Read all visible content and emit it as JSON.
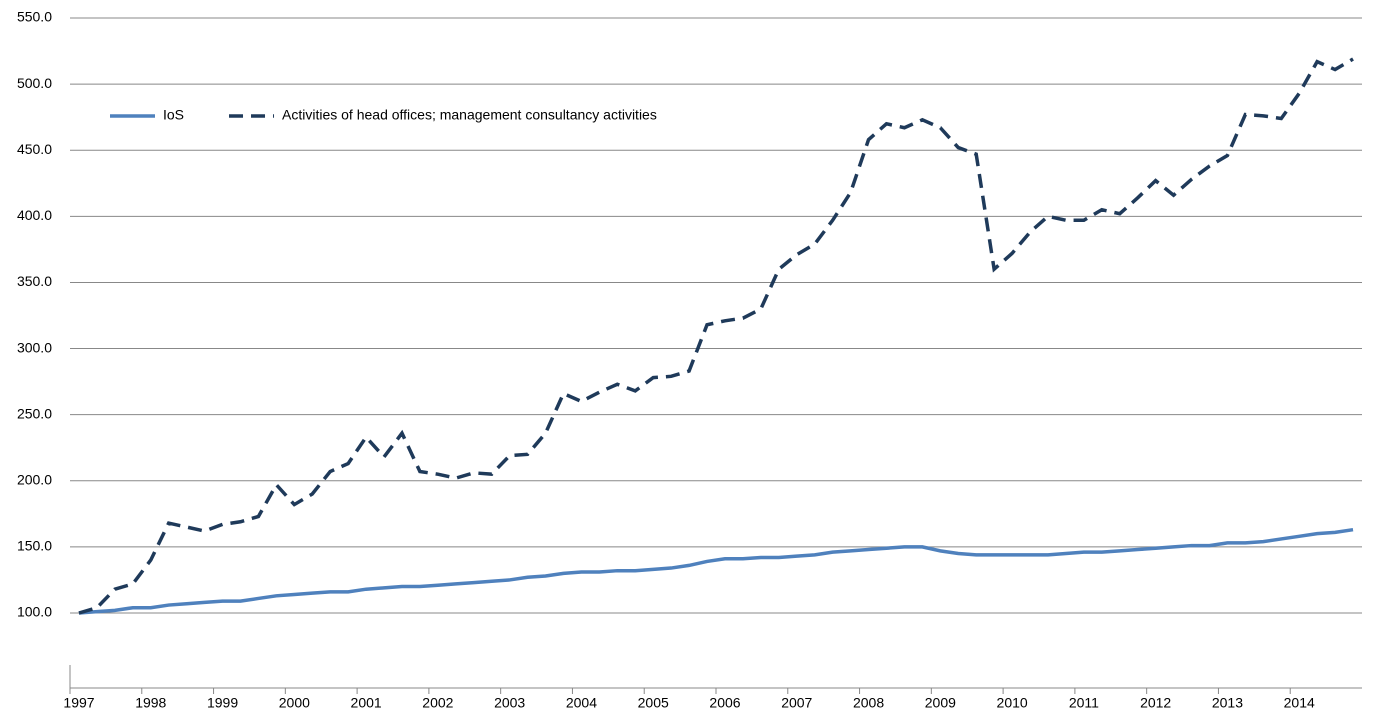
{
  "chart_data": {
    "type": "line",
    "categories": [
      "1997",
      null,
      null,
      null,
      "1998",
      null,
      null,
      null,
      "1999",
      null,
      null,
      null,
      "2000",
      null,
      null,
      null,
      "2001",
      null,
      null,
      null,
      "2002",
      null,
      null,
      null,
      "2003",
      null,
      null,
      null,
      "2004",
      null,
      null,
      null,
      "2005",
      null,
      null,
      null,
      "2006",
      null,
      null,
      null,
      "2007",
      null,
      null,
      null,
      "2008",
      null,
      null,
      null,
      "2009",
      null,
      null,
      null,
      "2010",
      null,
      null,
      null,
      "2011",
      null,
      null,
      null,
      "2012",
      null,
      null,
      null,
      "2013",
      null,
      null,
      null,
      "2014",
      null,
      null,
      null
    ],
    "series": [
      {
        "name": "IoS",
        "color": "#4f81bd",
        "dash": false,
        "values": [
          100,
          101,
          102,
          104,
          104,
          106,
          107,
          108,
          109,
          109,
          111,
          113,
          114,
          115,
          116,
          116,
          118,
          119,
          120,
          120,
          121,
          122,
          123,
          124,
          125,
          127,
          128,
          130,
          131,
          131,
          132,
          132,
          133,
          134,
          136,
          139,
          141,
          141,
          142,
          142,
          143,
          144,
          146,
          147,
          148,
          149,
          150,
          150,
          147,
          145,
          144,
          144,
          144,
          144,
          144,
          145,
          146,
          146,
          147,
          148,
          149,
          150,
          151,
          151,
          153,
          153,
          154,
          156,
          158,
          160,
          161,
          163
        ]
      },
      {
        "name": "Activities of head offices; management consultancy activities",
        "color": "#1f3a5a",
        "dash": true,
        "values": [
          100,
          104,
          118,
          122,
          140,
          168,
          165,
          162,
          167,
          169,
          173,
          197,
          182,
          190,
          207,
          213,
          233,
          218,
          236,
          207,
          205,
          202,
          206,
          205,
          219,
          220,
          236,
          266,
          260,
          267,
          273,
          268,
          278,
          279,
          283,
          318,
          321,
          323,
          330,
          360,
          371,
          379,
          397,
          418,
          458,
          470,
          467,
          473,
          467,
          452,
          447,
          360,
          372,
          388,
          400,
          397,
          397,
          405,
          402,
          414,
          427,
          416,
          428,
          438,
          446,
          477,
          476,
          474,
          493,
          517,
          511,
          519
        ]
      }
    ],
    "ylim": [
      100,
      550
    ],
    "yticks": [
      {
        "value": 100,
        "label": "100.0"
      },
      {
        "value": 150,
        "label": "150.0"
      },
      {
        "value": 200,
        "label": "200.0"
      },
      {
        "value": 250,
        "label": "250.0"
      },
      {
        "value": 300,
        "label": "300.0"
      },
      {
        "value": 350,
        "label": "350.0"
      },
      {
        "value": 400,
        "label": "400.0"
      },
      {
        "value": 450,
        "label": "450.0"
      },
      {
        "value": 500,
        "label": "500.0"
      },
      {
        "value": 550,
        "label": "550.0"
      }
    ],
    "grid": true,
    "legend": "upper left"
  }
}
